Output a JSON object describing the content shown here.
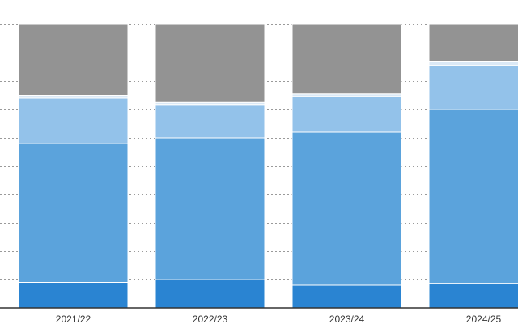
{
  "chart_data": {
    "type": "bar",
    "stacked": true,
    "categories": [
      "2021/22",
      "2022/23",
      "2023/24",
      "2024/25"
    ],
    "series": [
      {
        "values": [
          9,
          10,
          8,
          8.5
        ],
        "color": "#2a84d2"
      },
      {
        "values": [
          49,
          50,
          54,
          61.5
        ],
        "color": "#5ba3dc"
      },
      {
        "values": [
          16,
          11.5,
          12.5,
          15.5
        ],
        "color": "#93c2ea"
      },
      {
        "values": [
          1,
          1,
          1,
          1.5
        ],
        "color": "#dbe9f6"
      },
      {
        "values": [
          25,
          27.5,
          24.5,
          13
        ],
        "color": "#939393"
      }
    ],
    "ylim": [
      0,
      100
    ],
    "grid": true,
    "xlabel": "",
    "ylabel": "",
    "title": ""
  }
}
